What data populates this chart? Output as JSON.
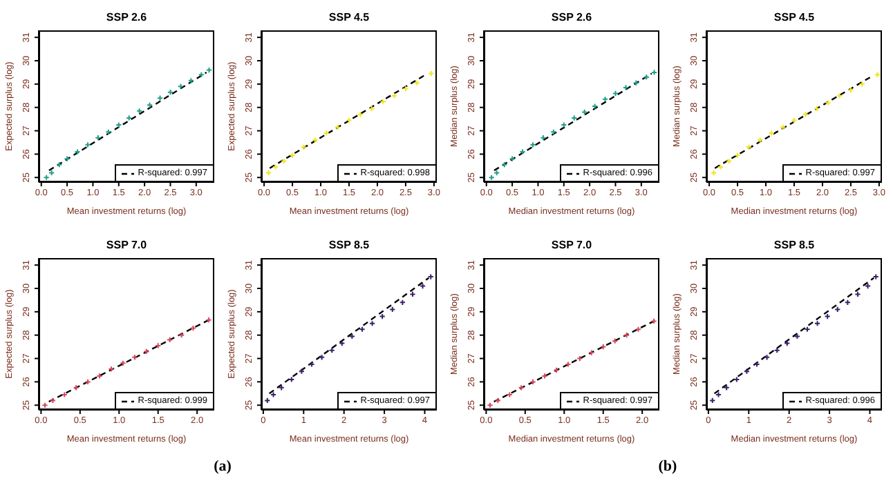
{
  "chart_data": [
    {
      "type": "scatter",
      "title": "SSP 2.6",
      "xlabel": "Mean investment returns (log)",
      "ylabel": "Expected surplus (log)",
      "marker": "cross",
      "legend": "bottom right",
      "xlim": [
        -0.05,
        3.35
      ],
      "xticks": [
        {
          "value": 0,
          "label": "0.0"
        },
        0.5,
        {
          "value": 1,
          "label": "1.0"
        },
        1.5,
        {
          "value": 2,
          "label": "2.0"
        },
        2.5,
        {
          "value": 3,
          "label": "3.0"
        }
      ],
      "ylim": [
        24.8,
        31.3
      ],
      "yticks": [
        25,
        26,
        27,
        28,
        29,
        30,
        31
      ],
      "series": [
        {
          "color": "#1f9e89",
          "x": [
            0.1,
            0.2,
            0.35,
            0.5,
            0.7,
            0.9,
            1.1,
            1.3,
            1.5,
            1.7,
            1.9,
            2.1,
            2.3,
            2.5,
            2.7,
            2.9,
            3.1,
            3.25
          ],
          "values": [
            25.0,
            25.2,
            25.55,
            25.8,
            26.1,
            26.4,
            26.7,
            26.95,
            27.25,
            27.55,
            27.85,
            28.1,
            28.4,
            28.65,
            28.9,
            29.15,
            29.4,
            29.6
          ]
        },
        {
          "type": "line",
          "name": "R-squared: 0.997",
          "color": "#000000",
          "line_style": "dashed",
          "marker": "none",
          "x": [
            0.15,
            3.2
          ],
          "values": [
            25.3,
            29.5
          ]
        }
      ]
    },
    {
      "type": "scatter",
      "title": "SSP 4.5",
      "xlabel": "Mean investment returns (log)",
      "ylabel": "Expected surplus (log)",
      "marker": "cross",
      "legend": "bottom right",
      "xlim": [
        -0.05,
        3.05
      ],
      "xticks": [
        {
          "value": 0,
          "label": "0.0"
        },
        0.5,
        {
          "value": 1,
          "label": "1.0"
        },
        1.5,
        {
          "value": 2,
          "label": "2.0"
        },
        2.5,
        {
          "value": 3,
          "label": "3.0"
        }
      ],
      "ylim": [
        24.8,
        31.3
      ],
      "yticks": [
        25,
        26,
        27,
        28,
        29,
        30,
        31
      ],
      "series": [
        {
          "color": "#f1e51d",
          "x": [
            0.08,
            0.2,
            0.35,
            0.5,
            0.7,
            0.9,
            1.1,
            1.3,
            1.5,
            1.7,
            1.9,
            2.1,
            2.3,
            2.5,
            2.7,
            2.95
          ],
          "values": [
            25.2,
            25.45,
            25.7,
            25.95,
            26.3,
            26.6,
            26.9,
            27.15,
            27.45,
            27.7,
            27.95,
            28.25,
            28.5,
            28.8,
            29.05,
            29.45
          ]
        },
        {
          "type": "line",
          "name": "R-squared: 0.998",
          "color": "#000000",
          "line_style": "dashed",
          "marker": "none",
          "x": [
            0.1,
            2.85
          ],
          "values": [
            25.4,
            29.4
          ]
        }
      ]
    },
    {
      "type": "scatter",
      "title": "SSP 2.6",
      "xlabel": "Median investment returns (log)",
      "ylabel": "Median surplus (log)",
      "marker": "cross",
      "legend": "bottom right",
      "xlim": [
        -0.05,
        3.35
      ],
      "xticks": [
        {
          "value": 0,
          "label": "0.0"
        },
        0.5,
        {
          "value": 1,
          "label": "1.0"
        },
        1.5,
        {
          "value": 2,
          "label": "2.0"
        },
        2.5,
        {
          "value": 3,
          "label": "3.0"
        }
      ],
      "ylim": [
        24.8,
        31.3
      ],
      "yticks": [
        25,
        26,
        27,
        28,
        29,
        30,
        31
      ],
      "series": [
        {
          "color": "#1f9e89",
          "x": [
            0.1,
            0.2,
            0.35,
            0.5,
            0.7,
            0.9,
            1.1,
            1.3,
            1.5,
            1.7,
            1.9,
            2.1,
            2.3,
            2.5,
            2.7,
            2.9,
            3.1,
            3.25
          ],
          "values": [
            25.0,
            25.2,
            25.55,
            25.8,
            26.1,
            26.4,
            26.7,
            26.95,
            27.25,
            27.55,
            27.8,
            28.05,
            28.35,
            28.6,
            28.85,
            29.05,
            29.3,
            29.5
          ]
        },
        {
          "type": "line",
          "name": "R-squared: 0.996",
          "color": "#000000",
          "line_style": "dashed",
          "marker": "none",
          "x": [
            0.15,
            3.2
          ],
          "values": [
            25.3,
            29.45
          ]
        }
      ]
    },
    {
      "type": "scatter",
      "title": "SSP 4.5",
      "xlabel": "Median investment returns (log)",
      "ylabel": "Median surplus (log)",
      "marker": "cross",
      "legend": "bottom right",
      "xlim": [
        -0.05,
        3.05
      ],
      "xticks": [
        {
          "value": 0,
          "label": "0.0"
        },
        0.5,
        {
          "value": 1,
          "label": "1.0"
        },
        1.5,
        {
          "value": 2,
          "label": "2.0"
        },
        2.5,
        {
          "value": 3,
          "label": "3.0"
        }
      ],
      "ylim": [
        24.8,
        31.3
      ],
      "yticks": [
        25,
        26,
        27,
        28,
        29,
        30,
        31
      ],
      "series": [
        {
          "color": "#f1e51d",
          "x": [
            0.08,
            0.2,
            0.35,
            0.5,
            0.7,
            0.9,
            1.1,
            1.3,
            1.5,
            1.7,
            1.9,
            2.1,
            2.3,
            2.5,
            2.7,
            2.97
          ],
          "values": [
            25.2,
            25.45,
            25.7,
            25.95,
            26.3,
            26.6,
            26.9,
            27.15,
            27.45,
            27.7,
            27.95,
            28.2,
            28.5,
            28.75,
            29.0,
            29.4
          ]
        },
        {
          "type": "line",
          "name": "R-squared: 0.997",
          "color": "#000000",
          "line_style": "dashed",
          "marker": "none",
          "x": [
            0.1,
            2.85
          ],
          "values": [
            25.4,
            29.3
          ]
        }
      ]
    },
    {
      "type": "scatter",
      "title": "SSP 7.0",
      "xlabel": "Mean investment returns (log)",
      "ylabel": "Expected surplus (log)",
      "marker": "cross",
      "legend": "bottom right",
      "annotations": [
        "(a)"
      ],
      "xlim": [
        -0.03,
        2.22
      ],
      "xticks": [
        {
          "value": 0,
          "label": "0.0"
        },
        0.5,
        {
          "value": 1,
          "label": "1.0"
        },
        1.5,
        {
          "value": 2,
          "label": "2.0"
        }
      ],
      "ylim": [
        24.8,
        31.3
      ],
      "yticks": [
        25,
        26,
        27,
        28,
        29,
        30,
        31
      ],
      "series": [
        {
          "color": "#d6455a",
          "x": [
            0.05,
            0.15,
            0.3,
            0.45,
            0.6,
            0.75,
            0.9,
            1.05,
            1.2,
            1.35,
            1.5,
            1.65,
            1.8,
            1.95,
            2.15
          ],
          "values": [
            25.0,
            25.2,
            25.45,
            25.75,
            26.0,
            26.25,
            26.55,
            26.8,
            27.05,
            27.3,
            27.55,
            27.8,
            28.0,
            28.3,
            28.65
          ]
        },
        {
          "type": "line",
          "name": "R-squared: 0.999",
          "color": "#000000",
          "line_style": "dashed",
          "marker": "none",
          "x": [
            0.1,
            2.15
          ],
          "values": [
            25.15,
            28.65
          ]
        }
      ]
    },
    {
      "type": "scatter",
      "title": "SSP 8.5",
      "xlabel": "Mean investment returns (log)",
      "ylabel": "Expected surplus (log)",
      "marker": "cross",
      "legend": "bottom right",
      "xlim": [
        -0.05,
        4.3
      ],
      "xticks": [
        0,
        1,
        2,
        3,
        4
      ],
      "ylim": [
        24.8,
        31.3
      ],
      "yticks": [
        25,
        26,
        27,
        28,
        29,
        30,
        31
      ],
      "series": [
        {
          "color": "#3b1f6b",
          "x": [
            0.1,
            0.25,
            0.45,
            0.7,
            0.95,
            1.2,
            1.45,
            1.7,
            1.95,
            2.2,
            2.45,
            2.7,
            2.95,
            3.2,
            3.45,
            3.7,
            3.95,
            4.15
          ],
          "values": [
            25.2,
            25.45,
            25.75,
            26.1,
            26.45,
            26.75,
            27.05,
            27.35,
            27.65,
            27.95,
            28.25,
            28.5,
            28.8,
            29.1,
            29.4,
            29.75,
            30.1,
            30.5
          ]
        },
        {
          "type": "line",
          "name": "R-squared: 0.997",
          "color": "#000000",
          "line_style": "dashed",
          "marker": "none",
          "x": [
            0.15,
            4.1
          ],
          "values": [
            25.5,
            30.45
          ]
        }
      ]
    },
    {
      "type": "scatter",
      "title": "SSP 7.0",
      "xlabel": "Median investment returns (log)",
      "ylabel": "Median surplus (log)",
      "marker": "cross",
      "legend": "bottom right",
      "annotations": [
        "(b)"
      ],
      "xlim": [
        -0.03,
        2.22
      ],
      "xticks": [
        {
          "value": 0,
          "label": "0.0"
        },
        0.5,
        {
          "value": 1,
          "label": "1.0"
        },
        1.5,
        {
          "value": 2,
          "label": "2.0"
        }
      ],
      "ylim": [
        24.8,
        31.3
      ],
      "yticks": [
        25,
        26,
        27,
        28,
        29,
        30,
        31
      ],
      "series": [
        {
          "color": "#d6455a",
          "x": [
            0.05,
            0.15,
            0.3,
            0.45,
            0.6,
            0.75,
            0.9,
            1.05,
            1.2,
            1.35,
            1.5,
            1.65,
            1.8,
            1.95,
            2.15
          ],
          "values": [
            25.0,
            25.2,
            25.45,
            25.75,
            26.0,
            26.25,
            26.5,
            26.75,
            27.0,
            27.25,
            27.5,
            27.75,
            28.0,
            28.25,
            28.6
          ]
        },
        {
          "type": "line",
          "name": "R-squared: 0.997",
          "color": "#000000",
          "line_style": "dashed",
          "marker": "none",
          "x": [
            0.1,
            2.15
          ],
          "values": [
            25.15,
            28.6
          ]
        }
      ]
    },
    {
      "type": "scatter",
      "title": "SSP 8.5",
      "xlabel": "Median investment returns (log)",
      "ylabel": "Median surplus (log)",
      "marker": "cross",
      "legend": "bottom right",
      "xlim": [
        -0.05,
        4.3
      ],
      "xticks": [
        0,
        1,
        2,
        3,
        4
      ],
      "ylim": [
        24.8,
        31.3
      ],
      "yticks": [
        25,
        26,
        27,
        28,
        29,
        30,
        31
      ],
      "series": [
        {
          "color": "#3b1f6b",
          "x": [
            0.1,
            0.25,
            0.45,
            0.7,
            0.95,
            1.2,
            1.45,
            1.7,
            1.95,
            2.2,
            2.45,
            2.7,
            2.95,
            3.2,
            3.45,
            3.7,
            3.95,
            4.15
          ],
          "values": [
            25.2,
            25.45,
            25.75,
            26.1,
            26.45,
            26.75,
            27.05,
            27.35,
            27.65,
            27.95,
            28.25,
            28.5,
            28.8,
            29.1,
            29.4,
            29.75,
            30.1,
            30.5
          ]
        },
        {
          "type": "line",
          "name": "R-squared: 0.996",
          "color": "#000000",
          "line_style": "dashed",
          "marker": "none",
          "x": [
            0.15,
            4.1
          ],
          "values": [
            25.5,
            30.45
          ]
        }
      ]
    }
  ]
}
